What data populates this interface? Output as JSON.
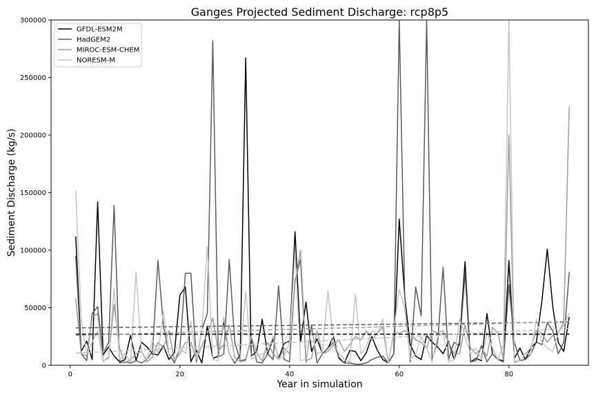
{
  "chart_data": {
    "type": "line",
    "title": "Ganges Projected Sediment Discharge: rcp8p5",
    "xlabel": "Year in simulation",
    "ylabel": "Sediment Discharge (kg/s)",
    "xlim": [
      -3.5,
      94.5
    ],
    "ylim": [
      0,
      300000
    ],
    "xticks": [
      0,
      20,
      40,
      60,
      80
    ],
    "yticks": [
      0,
      50000,
      100000,
      150000,
      200000,
      250000,
      300000
    ],
    "legend_position": "upper-left",
    "series": [
      {
        "name": "GFDL-ESM2M",
        "color": "#000000",
        "values": [
          112000,
          12000,
          21000,
          5000,
          142000,
          9000,
          16000,
          8000,
          3000,
          5000,
          26000,
          4000,
          20000,
          16000,
          10000,
          9000,
          17000,
          5000,
          11000,
          61000,
          68000,
          3000,
          13000,
          2000,
          34000,
          6000,
          8000,
          38000,
          10000,
          2000,
          9000,
          267000,
          8000,
          12000,
          40000,
          10000,
          23000,
          6000,
          19000,
          21000,
          116000,
          20000,
          55000,
          12000,
          23000,
          10000,
          15000,
          25000,
          6000,
          2000,
          13000,
          12000,
          4000,
          11000,
          25000,
          13000,
          5000,
          2000,
          10000,
          127000,
          60000,
          18000,
          8000,
          5000,
          26000,
          20000,
          16000,
          10000,
          21000,
          5000,
          20000,
          90000,
          3000,
          6000,
          4000,
          45000,
          10000,
          5000,
          4000,
          91000,
          6000,
          15000,
          5000,
          15000,
          20000,
          55000,
          101000,
          51000,
          20000,
          12000,
          42000
        ],
        "trend": [
          27000,
          27000
        ]
      },
      {
        "name": "HadGEM2",
        "color": "#5a5a5a",
        "values": [
          95000,
          10000,
          4000,
          45000,
          51000,
          10000,
          20000,
          139000,
          2000,
          3000,
          2000,
          4000,
          2000,
          5000,
          12000,
          91000,
          34000,
          10000,
          2000,
          15000,
          80000,
          80000,
          3000,
          31000,
          45000,
          282000,
          7000,
          10000,
          92000,
          20000,
          4000,
          5000,
          24000,
          3000,
          2000,
          10000,
          5000,
          69000,
          5000,
          3000,
          74000,
          92000,
          3000,
          35000,
          2000,
          10000,
          15000,
          20000,
          7000,
          2000,
          2000,
          1000,
          1000,
          2000,
          5000,
          7000,
          8000,
          2000,
          10000,
          300000,
          60000,
          3000,
          68000,
          43000,
          300000,
          5000,
          20000,
          85000,
          5000,
          20000,
          17000,
          80000,
          3000,
          4000,
          17000,
          3000,
          10000,
          5000,
          3000,
          70000,
          20000,
          4000,
          5000,
          10000,
          20000,
          18000,
          37000,
          30000,
          10000,
          20000,
          81000
        ],
        "trend": [
          32500,
          37500
        ]
      },
      {
        "name": "MIROC-ESM-CHEM",
        "color": "#9c9c9c",
        "values": [
          58000,
          10000,
          8000,
          42000,
          45000,
          4000,
          6000,
          53000,
          15000,
          2000,
          5000,
          10000,
          12000,
          3000,
          7000,
          20000,
          15000,
          30000,
          4000,
          10000,
          20000,
          20000,
          5000,
          17000,
          27000,
          41000,
          12000,
          18000,
          35000,
          7000,
          3000,
          4000,
          25000,
          11000,
          4000,
          20000,
          10000,
          5000,
          15000,
          10000,
          72000,
          100000,
          4000,
          6000,
          30000,
          10000,
          12000,
          18000,
          22000,
          12000,
          18000,
          25000,
          22000,
          30000,
          22000,
          28000,
          33000,
          2000,
          28000,
          28000,
          30000,
          28000,
          22000,
          20000,
          15000,
          30000,
          28000,
          30000,
          20000,
          10000,
          10000,
          35000,
          15000,
          10000,
          15000,
          8000,
          33000,
          28000,
          5000,
          200000,
          3000,
          4000,
          10000,
          15000,
          30000,
          28000,
          20000,
          26000,
          28000,
          38000,
          225000
        ],
        "trend": [
          26000,
          38000
        ]
      },
      {
        "name": "NORESM-M",
        "color": "#c4c4c4",
        "values": [
          152000,
          40000,
          10000,
          20000,
          30000,
          3000,
          8000,
          67000,
          5000,
          10000,
          3000,
          81000,
          12000,
          5000,
          22000,
          10000,
          47000,
          10000,
          5000,
          15000,
          10000,
          38000,
          5000,
          30000,
          103000,
          5000,
          4000,
          42000,
          10000,
          3000,
          5000,
          64000,
          5000,
          8000,
          10000,
          12000,
          25000,
          5000,
          8000,
          20000,
          100000,
          4000,
          5000,
          30000,
          10000,
          12000,
          65000,
          20000,
          10000,
          5000,
          3000,
          62000,
          10000,
          16000,
          30000,
          28000,
          40000,
          2000,
          30000,
          66000,
          50000,
          5000,
          10000,
          25000,
          15000,
          3000,
          25000,
          28000,
          3000,
          5000,
          40000,
          25000,
          10000,
          15000,
          5000,
          28000,
          15000,
          5000,
          18000,
          300000,
          2000,
          4000,
          10000,
          10000,
          40000,
          20000,
          15000,
          12000,
          28000,
          35000,
          45000
        ],
        "trend": [
          10500,
          32000
        ]
      }
    ]
  }
}
